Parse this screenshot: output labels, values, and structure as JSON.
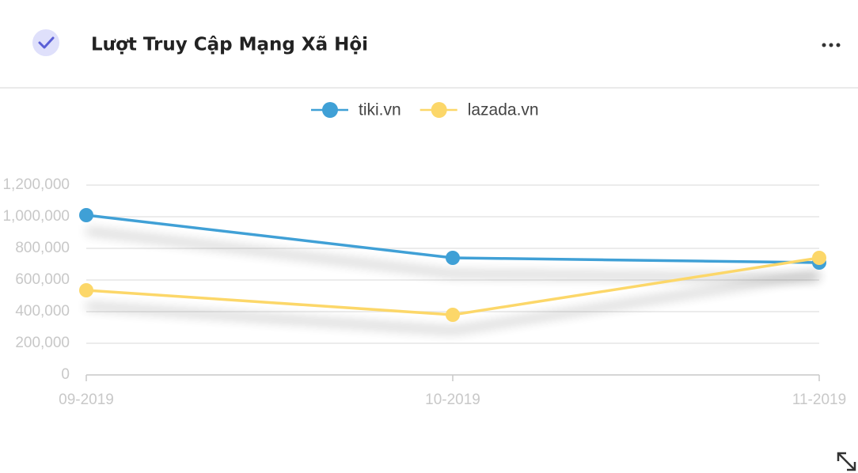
{
  "header": {
    "title": "Lượt Truy Cập Mạng Xã Hội"
  },
  "chart_data": {
    "type": "line",
    "categories": [
      "09-2019",
      "10-2019",
      "11-2019"
    ],
    "series": [
      {
        "name": "tiki.vn",
        "color": "#3fa0d6",
        "values": [
          1010000,
          740000,
          710000
        ]
      },
      {
        "name": "lazada.vn",
        "color": "#fcd769",
        "values": [
          535000,
          380000,
          740000
        ]
      }
    ],
    "ylim": [
      0,
      1200000
    ],
    "yticks": [
      0,
      {
        "value": 200000,
        "label": "200,000"
      },
      {
        "value": 400000,
        "label": "400,000"
      },
      {
        "value": 600000,
        "label": "600,000"
      },
      {
        "value": 800000,
        "label": "800,000"
      },
      {
        "value": 1000000,
        "label": "1,000,000"
      },
      {
        "value": 1200000,
        "label": "1,200,000"
      }
    ],
    "grid": true,
    "legend": "top"
  }
}
